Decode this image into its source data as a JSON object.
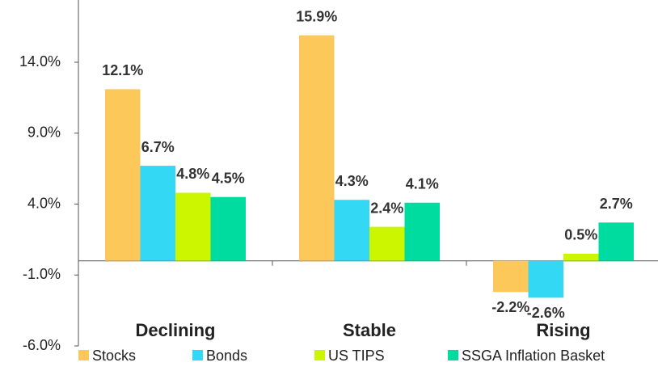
{
  "chart_data": {
    "type": "bar",
    "categories": [
      "Declining",
      "Stable",
      "Rising"
    ],
    "series": [
      {
        "name": "Stocks",
        "color": "#fcc85a",
        "values": [
          12.1,
          15.9,
          -2.2
        ],
        "value_labels": [
          "12.1%",
          "15.9%",
          "-2.2%"
        ]
      },
      {
        "name": "Bonds",
        "color": "#33d8f5",
        "values": [
          6.7,
          4.3,
          -2.6
        ],
        "value_labels": [
          "6.7%",
          "4.3%",
          "-2.6%"
        ]
      },
      {
        "name": "US TIPS",
        "color": "#ccf500",
        "values": [
          4.8,
          2.4,
          0.5
        ],
        "value_labels": [
          "4.8%",
          "2.4%",
          "0.5%"
        ]
      },
      {
        "name": "SSGA Inflation Basket",
        "color": "#00dca0",
        "values": [
          4.5,
          4.1,
          2.7
        ],
        "value_labels": [
          "4.5%",
          "4.1%",
          "2.7%"
        ]
      }
    ],
    "ylim": [
      -6,
      19
    ],
    "yticks": [
      {
        "value": -6,
        "label": "-6.0%"
      },
      {
        "value": -1,
        "label": "-1.0%"
      },
      {
        "value": 4,
        "label": "4.0%"
      },
      {
        "value": 9,
        "label": "9.0%"
      },
      {
        "value": 14,
        "label": "14.0%"
      }
    ],
    "legend": "bottom"
  }
}
